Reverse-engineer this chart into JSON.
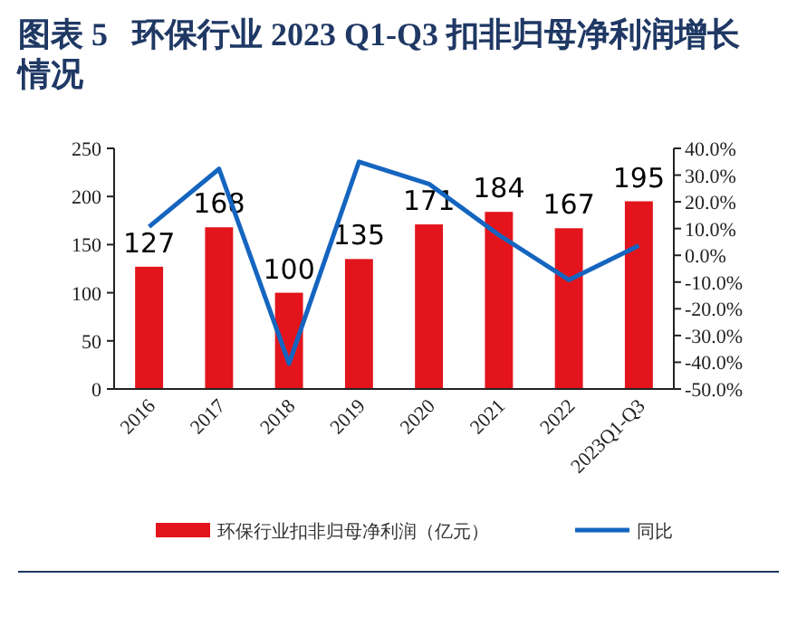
{
  "chart_data": {
    "type": "bar",
    "title": "图表 5   环保行业 2023 Q1-Q3 扣非归母净利润增长情况",
    "categories": [
      "2016",
      "2017",
      "2018",
      "2019",
      "2020",
      "2021",
      "2022",
      "2023Q1-Q3"
    ],
    "series": [
      {
        "name": "环保行业扣非归母净利润（亿元）",
        "color": "#e3141c",
        "values": [
          127,
          168,
          100,
          135,
          171,
          184,
          167,
          195
        ],
        "data_labels": true
      },
      {
        "name": "同比",
        "type": "line",
        "axis": "y2",
        "color": "#1565c0",
        "values": [
          10.7,
          32.3,
          -40.5,
          35.0,
          26.7,
          7.6,
          -9.2,
          3.6
        ]
      }
    ],
    "ylim": [
      0,
      250
    ],
    "yticks": [
      0,
      50,
      100,
      150,
      200,
      250
    ],
    "y2lim": [
      -50,
      40
    ],
    "y2ticks": [
      {
        "value": -50,
        "label": "-50.0%"
      },
      {
        "value": -40,
        "label": "-40.0%"
      },
      {
        "value": -30,
        "label": "-30.0%"
      },
      {
        "value": -20,
        "label": "-20.0%"
      },
      {
        "value": -10,
        "label": "-10.0%"
      },
      {
        "value": 0,
        "label": "0.0%"
      },
      {
        "value": 10,
        "label": "10.0%"
      },
      {
        "value": 20,
        "label": "20.0%"
      },
      {
        "value": 30,
        "label": "30.0%"
      },
      {
        "value": 40,
        "label": "40.0%"
      }
    ],
    "legend": "bottom",
    "grid": false,
    "marker": "none"
  }
}
